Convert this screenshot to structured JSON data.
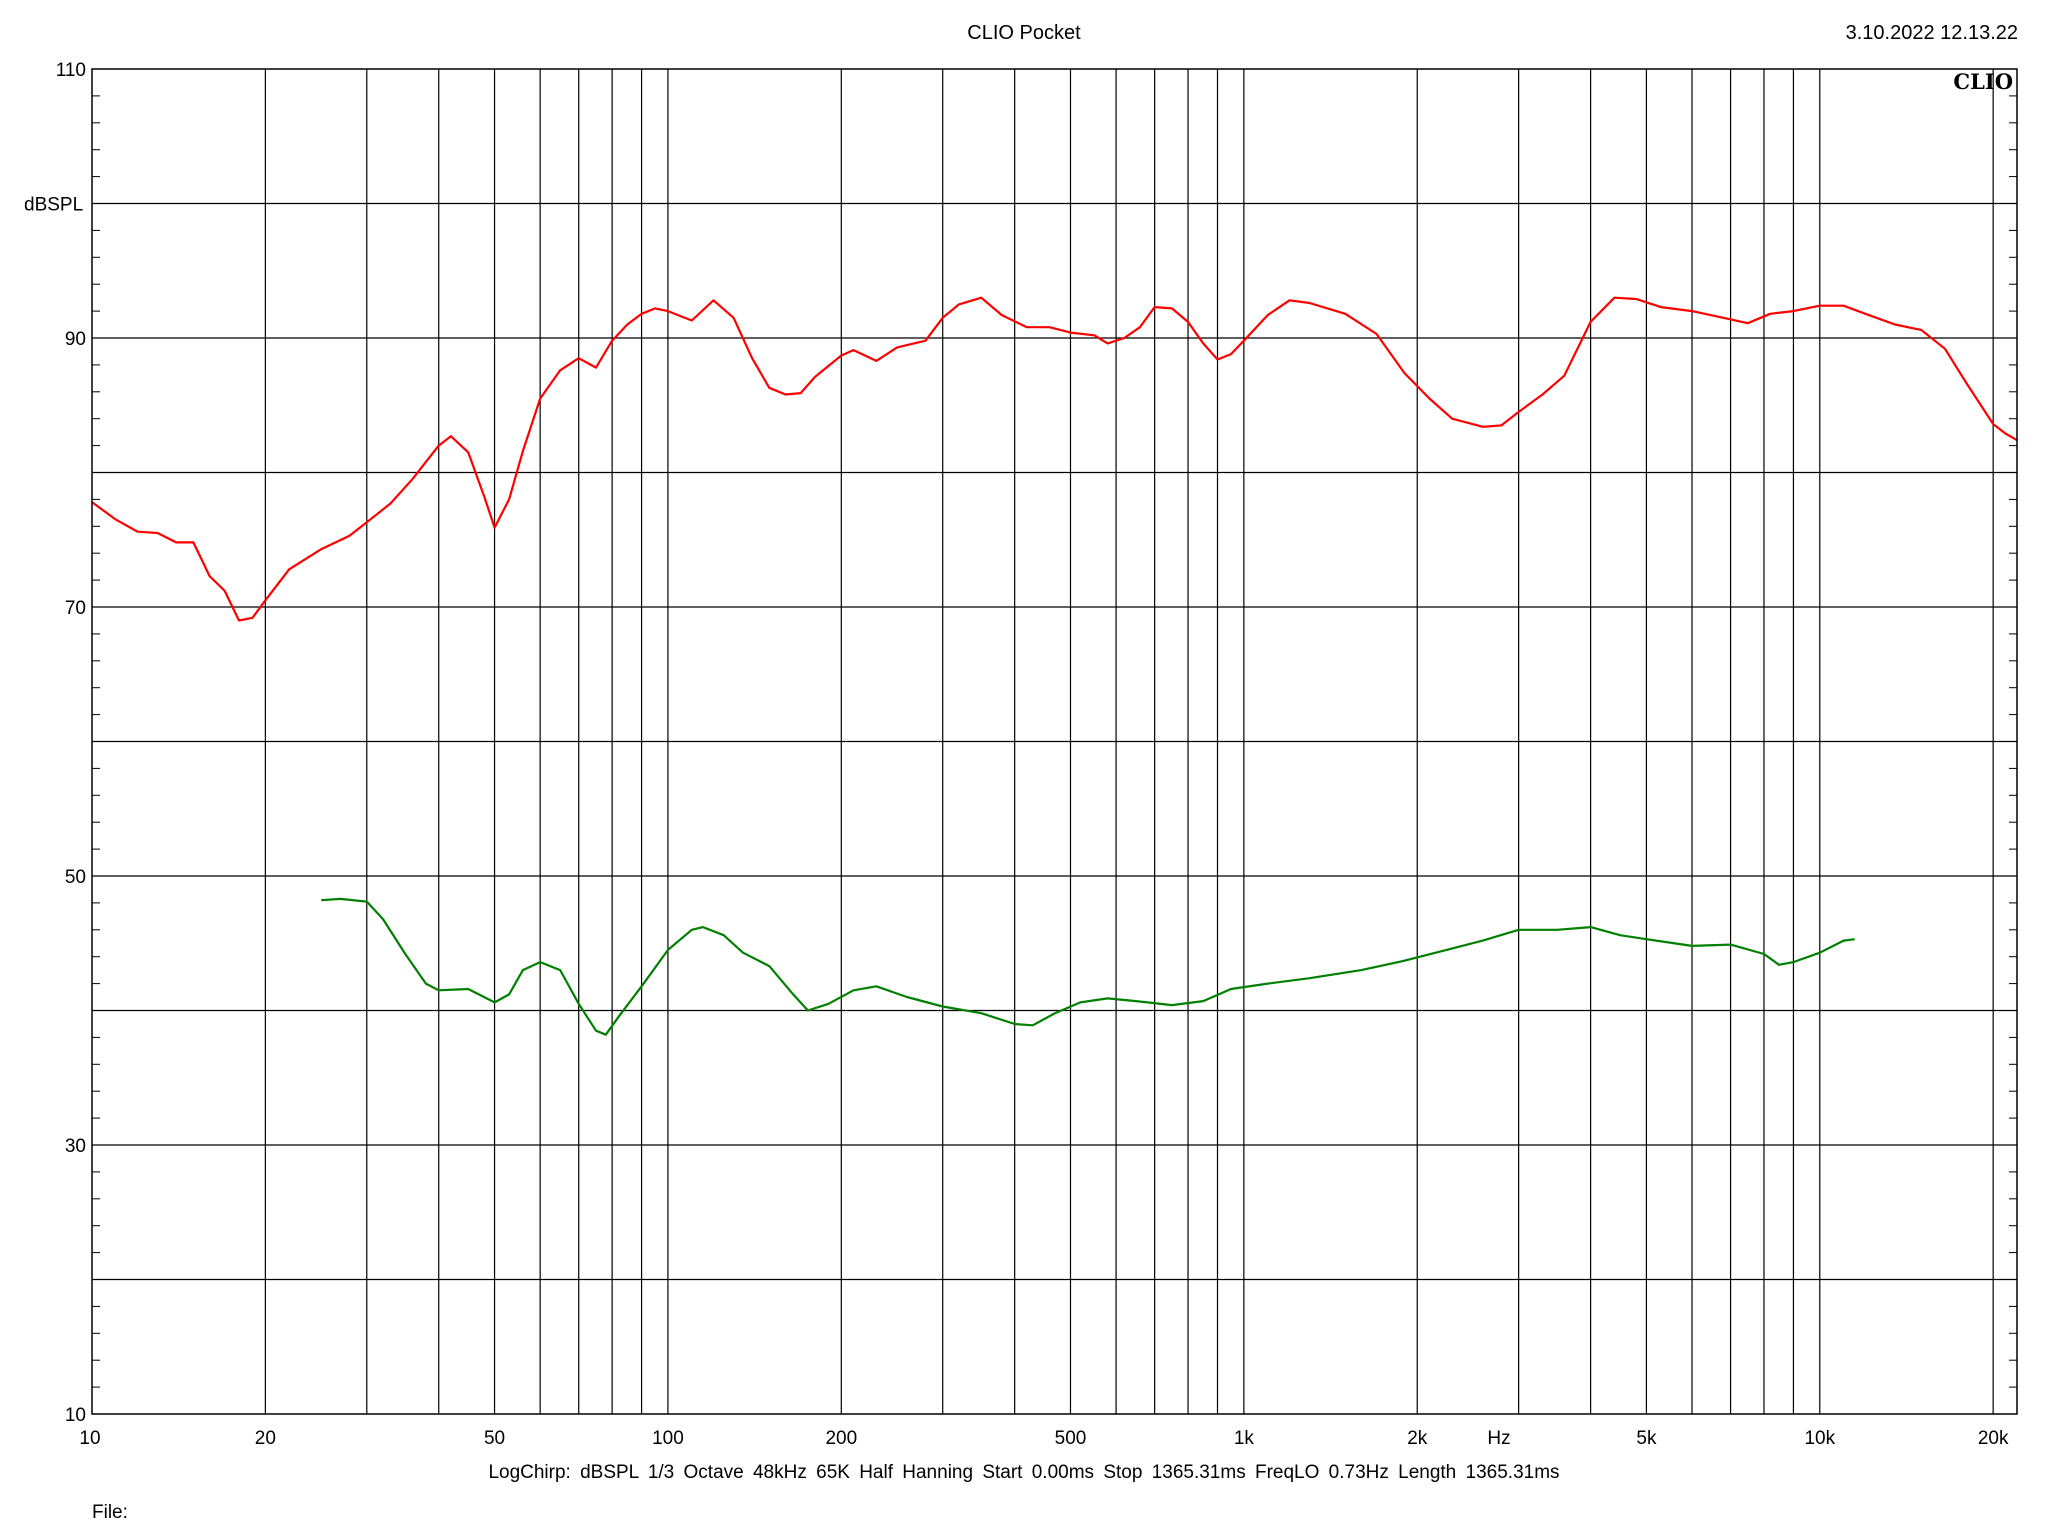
{
  "header": {
    "title": "CLIO Pocket",
    "timestamp": "3.10.2022 12.13.22",
    "logo": "CLIO"
  },
  "footer": {
    "params": "LogChirp:  dBSPL   1/3 Octave   48kHz   65K   Half Hanning   Start 0.00ms    Stop 1365.31ms    FreqLO 0.73Hz    Length 1365.31ms",
    "file_label": "File:"
  },
  "chart_data": {
    "type": "line",
    "title": "",
    "xlabel": "Hz",
    "ylabel": "dBSPL",
    "x_scale": "log",
    "xlim": [
      10,
      22000
    ],
    "ylim": [
      10,
      110
    ],
    "grid": true,
    "x_major_ticks": [
      10,
      20,
      50,
      100,
      200,
      500,
      1000,
      2000,
      5000,
      10000,
      20000
    ],
    "x_tick_labels": [
      "10",
      "20",
      "50",
      "100",
      "200",
      "500",
      "1k",
      "2k",
      "5k",
      "10k",
      "20k"
    ],
    "y_label_ticks": [
      10,
      30,
      50,
      70,
      90,
      110
    ],
    "y_label_text": [
      "10",
      "30",
      "50",
      "70",
      "90",
      "110"
    ],
    "y_grid_step": 10,
    "series": [
      {
        "color": "#ff0000",
        "points": [
          [
            10,
            77.8
          ],
          [
            11,
            76.5
          ],
          [
            12,
            75.6
          ],
          [
            13,
            75.5
          ],
          [
            14,
            74.8
          ],
          [
            15,
            74.8
          ],
          [
            16,
            72.3
          ],
          [
            17,
            71.2
          ],
          [
            18,
            69.0
          ],
          [
            19,
            69.2
          ],
          [
            20,
            70.5
          ],
          [
            22,
            72.8
          ],
          [
            25,
            74.3
          ],
          [
            28,
            75.3
          ],
          [
            30,
            76.3
          ],
          [
            33,
            77.7
          ],
          [
            36,
            79.5
          ],
          [
            40,
            82.0
          ],
          [
            42,
            82.7
          ],
          [
            45,
            81.5
          ],
          [
            48,
            78.2
          ],
          [
            50,
            75.9
          ],
          [
            53,
            78.0
          ],
          [
            56,
            81.6
          ],
          [
            60,
            85.5
          ],
          [
            65,
            87.6
          ],
          [
            70,
            88.5
          ],
          [
            75,
            87.8
          ],
          [
            80,
            89.8
          ],
          [
            85,
            91.0
          ],
          [
            90,
            91.8
          ],
          [
            95,
            92.2
          ],
          [
            100,
            92.0
          ],
          [
            110,
            91.3
          ],
          [
            120,
            92.8
          ],
          [
            130,
            91.5
          ],
          [
            140,
            88.5
          ],
          [
            150,
            86.3
          ],
          [
            160,
            85.8
          ],
          [
            170,
            85.9
          ],
          [
            180,
            87.1
          ],
          [
            200,
            88.7
          ],
          [
            210,
            89.1
          ],
          [
            230,
            88.3
          ],
          [
            250,
            89.3
          ],
          [
            280,
            89.8
          ],
          [
            300,
            91.5
          ],
          [
            320,
            92.5
          ],
          [
            350,
            93.0
          ],
          [
            380,
            91.7
          ],
          [
            420,
            90.8
          ],
          [
            460,
            90.8
          ],
          [
            500,
            90.4
          ],
          [
            550,
            90.2
          ],
          [
            580,
            89.6
          ],
          [
            620,
            90.0
          ],
          [
            660,
            90.8
          ],
          [
            700,
            92.3
          ],
          [
            750,
            92.2
          ],
          [
            800,
            91.2
          ],
          [
            850,
            89.6
          ],
          [
            900,
            88.4
          ],
          [
            950,
            88.8
          ],
          [
            1000,
            89.8
          ],
          [
            1100,
            91.7
          ],
          [
            1200,
            92.8
          ],
          [
            1300,
            92.6
          ],
          [
            1500,
            91.8
          ],
          [
            1700,
            90.3
          ],
          [
            1900,
            87.4
          ],
          [
            2100,
            85.5
          ],
          [
            2300,
            84.0
          ],
          [
            2600,
            83.4
          ],
          [
            2800,
            83.5
          ],
          [
            3000,
            84.5
          ],
          [
            3300,
            85.8
          ],
          [
            3600,
            87.2
          ],
          [
            4000,
            91.2
          ],
          [
            4400,
            93.0
          ],
          [
            4800,
            92.9
          ],
          [
            5300,
            92.3
          ],
          [
            6000,
            92.0
          ],
          [
            6800,
            91.5
          ],
          [
            7500,
            91.1
          ],
          [
            8200,
            91.8
          ],
          [
            9000,
            92.0
          ],
          [
            10000,
            92.4
          ],
          [
            11000,
            92.4
          ],
          [
            12000,
            91.8
          ],
          [
            13500,
            91.0
          ],
          [
            15000,
            90.6
          ],
          [
            16500,
            89.2
          ],
          [
            18000,
            86.6
          ],
          [
            20000,
            83.6
          ],
          [
            21000,
            82.9
          ],
          [
            22000,
            82.4
          ]
        ]
      },
      {
        "color": "#008000",
        "points": [
          [
            25,
            48.2
          ],
          [
            27,
            48.3
          ],
          [
            30,
            48.1
          ],
          [
            32,
            46.8
          ],
          [
            35,
            44.2
          ],
          [
            38,
            42.0
          ],
          [
            40,
            41.5
          ],
          [
            45,
            41.6
          ],
          [
            50,
            40.6
          ],
          [
            53,
            41.2
          ],
          [
            56,
            43.0
          ],
          [
            60,
            43.6
          ],
          [
            65,
            43.0
          ],
          [
            70,
            40.5
          ],
          [
            75,
            38.5
          ],
          [
            78,
            38.2
          ],
          [
            82,
            39.5
          ],
          [
            90,
            41.8
          ],
          [
            100,
            44.5
          ],
          [
            110,
            46.0
          ],
          [
            115,
            46.2
          ],
          [
            125,
            45.6
          ],
          [
            135,
            44.3
          ],
          [
            150,
            43.3
          ],
          [
            165,
            41.2
          ],
          [
            175,
            40.0
          ],
          [
            190,
            40.5
          ],
          [
            210,
            41.5
          ],
          [
            230,
            41.8
          ],
          [
            260,
            41.0
          ],
          [
            300,
            40.3
          ],
          [
            350,
            39.8
          ],
          [
            400,
            39.0
          ],
          [
            430,
            38.9
          ],
          [
            470,
            39.8
          ],
          [
            520,
            40.6
          ],
          [
            580,
            40.9
          ],
          [
            650,
            40.7
          ],
          [
            750,
            40.4
          ],
          [
            850,
            40.7
          ],
          [
            950,
            41.6
          ],
          [
            1100,
            42.0
          ],
          [
            1300,
            42.4
          ],
          [
            1600,
            43.0
          ],
          [
            1900,
            43.7
          ],
          [
            2200,
            44.4
          ],
          [
            2600,
            45.2
          ],
          [
            3000,
            46.0
          ],
          [
            3500,
            46.0
          ],
          [
            4000,
            46.2
          ],
          [
            4500,
            45.6
          ],
          [
            5000,
            45.3
          ],
          [
            6000,
            44.8
          ],
          [
            7000,
            44.9
          ],
          [
            8000,
            44.2
          ],
          [
            8500,
            43.4
          ],
          [
            9000,
            43.6
          ],
          [
            10000,
            44.3
          ],
          [
            11000,
            45.2
          ],
          [
            11500,
            45.3
          ]
        ]
      }
    ]
  }
}
